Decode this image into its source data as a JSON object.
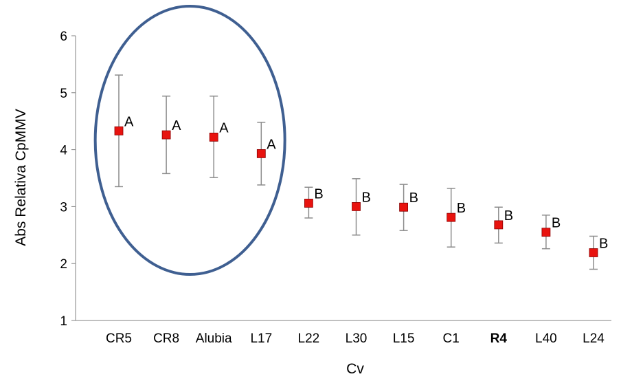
{
  "chart_data": {
    "type": "scatter",
    "xlabel": "Cv",
    "ylabel": "Abs Relativa CpMMV",
    "ylim": [
      1,
      6
    ],
    "yticks": [
      1,
      2,
      3,
      4,
      5,
      6
    ],
    "grid": false,
    "categories": [
      "CR5",
      "CR8",
      "Alubia",
      "L17",
      "L22",
      "L30",
      "L15",
      "C1",
      "R4",
      "L40",
      "L24"
    ],
    "bold_categories": [
      "R4"
    ],
    "series": [
      {
        "values": [
          4.33,
          4.26,
          4.22,
          3.93,
          3.06,
          3.0,
          2.99,
          2.81,
          2.68,
          2.55,
          2.19
        ],
        "error_low": [
          3.35,
          3.58,
          3.51,
          3.38,
          2.8,
          2.5,
          2.58,
          2.29,
          2.36,
          2.26,
          1.9
        ],
        "error_high": [
          5.31,
          4.94,
          4.94,
          4.48,
          3.34,
          3.49,
          3.39,
          3.32,
          2.99,
          2.85,
          2.48
        ],
        "group_labels": [
          "A",
          "A",
          "A",
          "A",
          "B",
          "B",
          "B",
          "B",
          "B",
          "B",
          "B"
        ]
      }
    ],
    "colors": {
      "marker": "#e8130f",
      "marker_border": "#8a0000",
      "error_bar": "#8c8c8c",
      "ellipse": "#3f5f91",
      "axis": "#808080"
    },
    "annotations": [
      {
        "type": "ellipse",
        "encloses": [
          "CR5",
          "CR8",
          "Alubia",
          "L17"
        ]
      }
    ]
  }
}
